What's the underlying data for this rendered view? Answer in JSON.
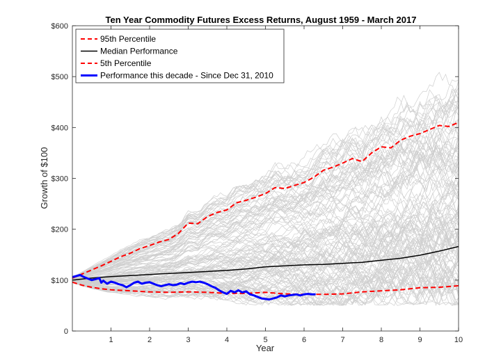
{
  "chart_data": {
    "type": "line",
    "title": "Ten Year Commodity Futures Excess Returns, August 1959 - March 2017",
    "xlabel": "Year",
    "ylabel": "Growth of $100",
    "xlim": [
      0,
      10
    ],
    "ylim": [
      0,
      600
    ],
    "x_ticks": [
      1,
      2,
      3,
      4,
      5,
      6,
      7,
      8,
      9,
      10
    ],
    "y_ticks": [
      0,
      100,
      200,
      300,
      400,
      500,
      600
    ],
    "y_tick_labels": [
      "0",
      "$100",
      "$200",
      "$300",
      "$400",
      "$500",
      "$600"
    ],
    "grid": false,
    "legend_position": "top-left",
    "background_paths": {
      "description_visible": "many thin gray simulated paths",
      "color": "#cccccc"
    },
    "series": [
      {
        "name": "95th Percentile",
        "color": "#ff0000",
        "style": "dashed",
        "x": [
          0,
          0.25,
          0.5,
          0.75,
          1.0,
          1.25,
          1.5,
          1.75,
          2.0,
          2.25,
          2.5,
          2.75,
          3.0,
          3.25,
          3.5,
          3.75,
          4.0,
          4.25,
          4.5,
          4.75,
          5.0,
          5.25,
          5.5,
          5.75,
          6.0,
          6.25,
          6.5,
          6.75,
          7.0,
          7.25,
          7.5,
          7.75,
          8.0,
          8.25,
          8.5,
          8.75,
          9.0,
          9.25,
          9.5,
          9.75,
          10.0
        ],
        "values": [
          104,
          112,
          120,
          128,
          137,
          146,
          153,
          162,
          168,
          175,
          180,
          192,
          212,
          211,
          225,
          233,
          238,
          252,
          257,
          263,
          270,
          282,
          280,
          286,
          292,
          302,
          316,
          322,
          330,
          339,
          333,
          350,
          362,
          360,
          375,
          383,
          388,
          396,
          404,
          402,
          410
        ]
      },
      {
        "name": "Median Performance",
        "color": "#000000",
        "style": "solid",
        "x": [
          0,
          0.5,
          1.0,
          1.5,
          2.0,
          2.5,
          3.0,
          3.5,
          4.0,
          4.5,
          5.0,
          5.5,
          6.0,
          6.5,
          7.0,
          7.5,
          8.0,
          8.5,
          9.0,
          9.5,
          10.0
        ],
        "values": [
          100,
          104,
          107,
          109,
          111,
          113,
          115,
          117,
          119,
          122,
          126,
          128,
          130,
          131,
          133,
          135,
          139,
          143,
          149,
          157,
          166
        ]
      },
      {
        "name": "5th Percentile",
        "color": "#ff0000",
        "style": "dashed",
        "x": [
          0,
          0.25,
          0.5,
          0.75,
          1.0,
          1.5,
          2.0,
          2.5,
          3.0,
          3.5,
          4.0,
          4.5,
          5.0,
          5.5,
          6.0,
          6.5,
          7.0,
          7.5,
          8.0,
          8.5,
          9.0,
          9.5,
          10.0
        ],
        "values": [
          96,
          90,
          86,
          83,
          81,
          79,
          77,
          76,
          77,
          76,
          74,
          74,
          76,
          73,
          72,
          72,
          73,
          77,
          79,
          81,
          85,
          86,
          89
        ]
      },
      {
        "name": "Performance this decade -  Since Dec 31, 2010",
        "color": "#0000ff",
        "style": "solid",
        "x": [
          0,
          0.1,
          0.2,
          0.3,
          0.4,
          0.5,
          0.6,
          0.7,
          0.75,
          0.8,
          0.9,
          1.0,
          1.1,
          1.2,
          1.3,
          1.4,
          1.5,
          1.6,
          1.7,
          1.8,
          1.9,
          2.0,
          2.1,
          2.2,
          2.3,
          2.4,
          2.5,
          2.6,
          2.7,
          2.8,
          2.9,
          3.0,
          3.1,
          3.2,
          3.3,
          3.4,
          3.5,
          3.6,
          3.7,
          3.8,
          3.9,
          4.0,
          4.1,
          4.2,
          4.3,
          4.4,
          4.5,
          4.6,
          4.7,
          4.8,
          4.9,
          5.0,
          5.1,
          5.2,
          5.3,
          5.4,
          5.5,
          5.6,
          5.7,
          5.8,
          5.9,
          6.0,
          6.1,
          6.2,
          6.3
        ],
        "values": [
          106,
          108,
          110,
          106,
          103,
          100,
          102,
          104,
          95,
          99,
          93,
          97,
          95,
          92,
          90,
          86,
          90,
          95,
          97,
          93,
          95,
          96,
          93,
          90,
          88,
          90,
          92,
          90,
          91,
          94,
          92,
          95,
          97,
          96,
          97,
          95,
          92,
          88,
          85,
          80,
          76,
          73,
          79,
          76,
          80,
          76,
          78,
          72,
          70,
          67,
          64,
          63,
          62,
          64,
          66,
          70,
          68,
          70,
          71,
          72,
          70,
          72,
          73,
          72,
          72
        ]
      }
    ]
  }
}
